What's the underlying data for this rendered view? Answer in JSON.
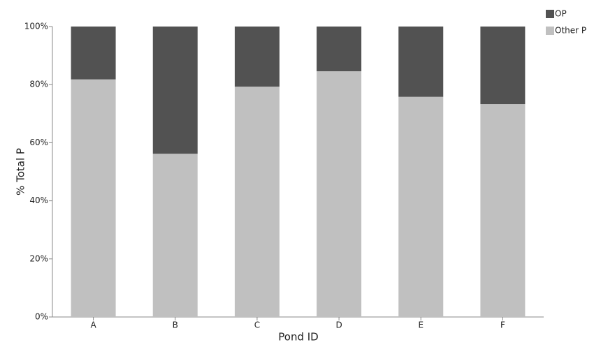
{
  "chart_data": {
    "type": "stacked_bar",
    "x_label": "Pond ID",
    "y_label": "% Total P",
    "categories": [
      "A",
      "B",
      "C",
      "D",
      "E",
      "F"
    ],
    "series": [
      {
        "name": "Other P",
        "color": "#c0c0c0",
        "values": [
          81.8,
          56.2,
          79.3,
          84.6,
          75.8,
          73.3
        ]
      },
      {
        "name": "OP",
        "color": "#525252",
        "values": [
          18.2,
          43.8,
          20.7,
          15.4,
          24.2,
          26.7
        ]
      }
    ],
    "ylim": [
      0,
      100
    ],
    "yticks": [
      {
        "value": 0,
        "label": "0%"
      },
      {
        "value": 20,
        "label": "20%"
      },
      {
        "value": 40,
        "label": "40%"
      },
      {
        "value": 60,
        "label": "60%"
      },
      {
        "value": 80,
        "label": "80%"
      },
      {
        "value": 100,
        "label": "100%"
      }
    ],
    "legend": "top-right",
    "grid": false
  }
}
